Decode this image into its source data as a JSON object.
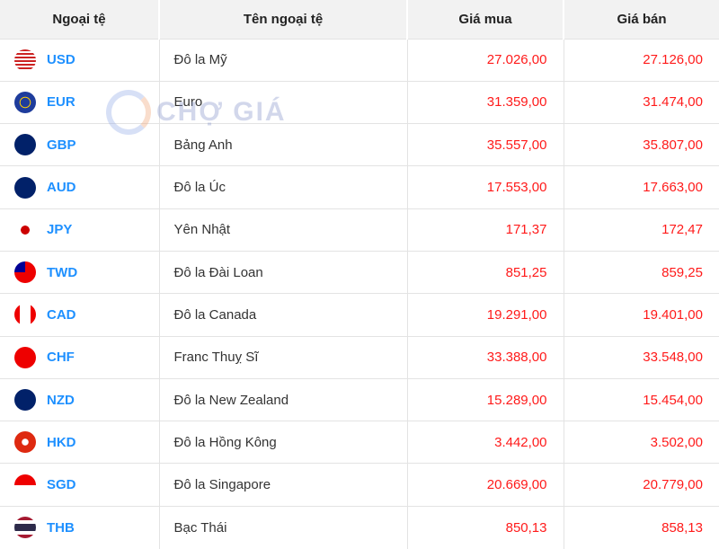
{
  "header": {
    "code": "Ngoại tệ",
    "name": "Tên ngoại tệ",
    "buy": "Giá mua",
    "sell": "Giá bán"
  },
  "watermark": "CHỢ GIÁ",
  "rows": [
    {
      "code": "USD",
      "name": "Đô la Mỹ",
      "buy": "27.026,00",
      "sell": "27.126,00",
      "flag": "us-flag-icon"
    },
    {
      "code": "EUR",
      "name": "Euro",
      "buy": "31.359,00",
      "sell": "31.474,00",
      "flag": "eu-flag-icon"
    },
    {
      "code": "GBP",
      "name": "Bảng Anh",
      "buy": "35.557,00",
      "sell": "35.807,00",
      "flag": "uk-flag-icon"
    },
    {
      "code": "AUD",
      "name": "Đô la Úc",
      "buy": "17.553,00",
      "sell": "17.663,00",
      "flag": "au-flag-icon"
    },
    {
      "code": "JPY",
      "name": "Yên Nhật",
      "buy": "171,37",
      "sell": "172,47",
      "flag": "jp-flag-icon"
    },
    {
      "code": "TWD",
      "name": "Đô la Đài Loan",
      "buy": "851,25",
      "sell": "859,25",
      "flag": "tw-flag-icon"
    },
    {
      "code": "CAD",
      "name": "Đô la Canada",
      "buy": "19.291,00",
      "sell": "19.401,00",
      "flag": "ca-flag-icon"
    },
    {
      "code": "CHF",
      "name": "Franc Thuỵ Sĩ",
      "buy": "33.388,00",
      "sell": "33.548,00",
      "flag": "ch-flag-icon"
    },
    {
      "code": "NZD",
      "name": "Đô la New Zealand",
      "buy": "15.289,00",
      "sell": "15.454,00",
      "flag": "nz-flag-icon"
    },
    {
      "code": "HKD",
      "name": "Đô la Hồng Kông",
      "buy": "3.442,00",
      "sell": "3.502,00",
      "flag": "hk-flag-icon"
    },
    {
      "code": "SGD",
      "name": "Đô la Singapore",
      "buy": "20.669,00",
      "sell": "20.779,00",
      "flag": "sg-flag-icon"
    },
    {
      "code": "THB",
      "name": "Bạc Thái",
      "buy": "850,13",
      "sell": "858,13",
      "flag": "th-flag-icon"
    }
  ]
}
